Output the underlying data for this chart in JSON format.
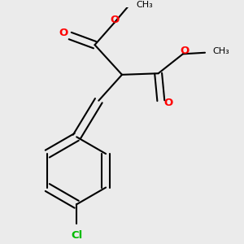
{
  "background_color": "#ebebeb",
  "bond_color": "#000000",
  "oxygen_color": "#ff0000",
  "chlorine_color": "#00bb00",
  "line_width": 1.5,
  "font_size": 8.5,
  "figsize": [
    3.0,
    3.0
  ],
  "dpi": 100,
  "xlim": [
    0.05,
    0.85
  ],
  "ylim": [
    0.05,
    0.95
  ]
}
